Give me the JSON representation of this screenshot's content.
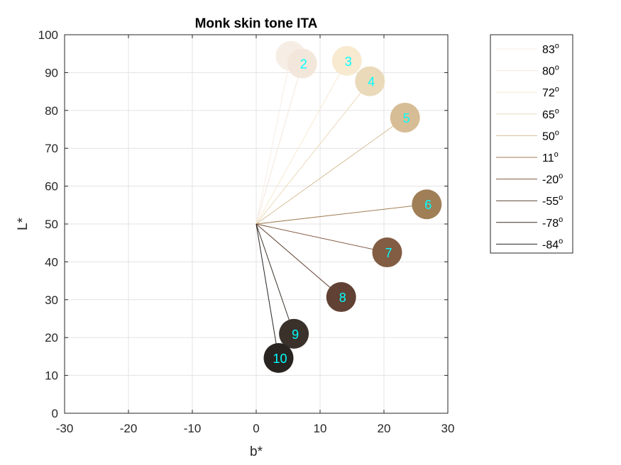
{
  "chart_data": {
    "type": "scatter",
    "title": "Monk skin tone ITA",
    "xlabel": "b*",
    "ylabel": "L*",
    "xlim": [
      -30,
      30
    ],
    "ylim": [
      0,
      100
    ],
    "xticks": [
      -30,
      -20,
      -10,
      0,
      10,
      20,
      30
    ],
    "yticks": [
      0,
      10,
      20,
      30,
      40,
      50,
      60,
      70,
      80,
      90,
      100
    ],
    "grid": true,
    "legend_position": "outside-top-right",
    "origin": {
      "b": 0,
      "L": 50
    },
    "label_color": "#00FFFF",
    "points": [
      {
        "id": "1",
        "label": "",
        "b": 5.4,
        "L": 94.4,
        "color": "#F6EDE4"
      },
      {
        "id": "2",
        "label": "2",
        "b": 7.2,
        "L": 92.4,
        "color": "#F3E7DB"
      },
      {
        "id": "3",
        "label": "3",
        "b": 14.2,
        "L": 93.1,
        "color": "#F7EAD0"
      },
      {
        "id": "4",
        "label": "4",
        "b": 17.8,
        "L": 87.7,
        "color": "#EADABA"
      },
      {
        "id": "5",
        "label": "5",
        "b": 23.3,
        "L": 78.1,
        "color": "#D7BD96"
      },
      {
        "id": "6",
        "label": "6",
        "b": 26.7,
        "L": 55.2,
        "color": "#A07E56"
      },
      {
        "id": "7",
        "label": "7",
        "b": 20.5,
        "L": 42.5,
        "color": "#825C43"
      },
      {
        "id": "8",
        "label": "8",
        "b": 13.3,
        "L": 30.7,
        "color": "#604134"
      },
      {
        "id": "9",
        "label": "9",
        "b": 5.9,
        "L": 21.0,
        "color": "#3A312A"
      },
      {
        "id": "10",
        "label": "10",
        "b": 3.5,
        "L": 14.6,
        "color": "#292420"
      }
    ],
    "legend": [
      {
        "value": "83",
        "unit": "o",
        "color": "#F6EDE4"
      },
      {
        "value": "80",
        "unit": "o",
        "color": "#F3E7DB"
      },
      {
        "value": "72",
        "unit": "o",
        "color": "#F7EAD0"
      },
      {
        "value": "65",
        "unit": "o",
        "color": "#EADABA"
      },
      {
        "value": "50",
        "unit": "o",
        "color": "#D7BD96"
      },
      {
        "value": "11",
        "unit": "o",
        "color": "#A07E56"
      },
      {
        "value": "-20",
        "unit": "o",
        "color": "#825C43"
      },
      {
        "value": "-55",
        "unit": "o",
        "color": "#604134"
      },
      {
        "value": "-78",
        "unit": "o",
        "color": "#3A312A"
      },
      {
        "value": "-84",
        "unit": "o",
        "color": "#292420"
      }
    ]
  }
}
